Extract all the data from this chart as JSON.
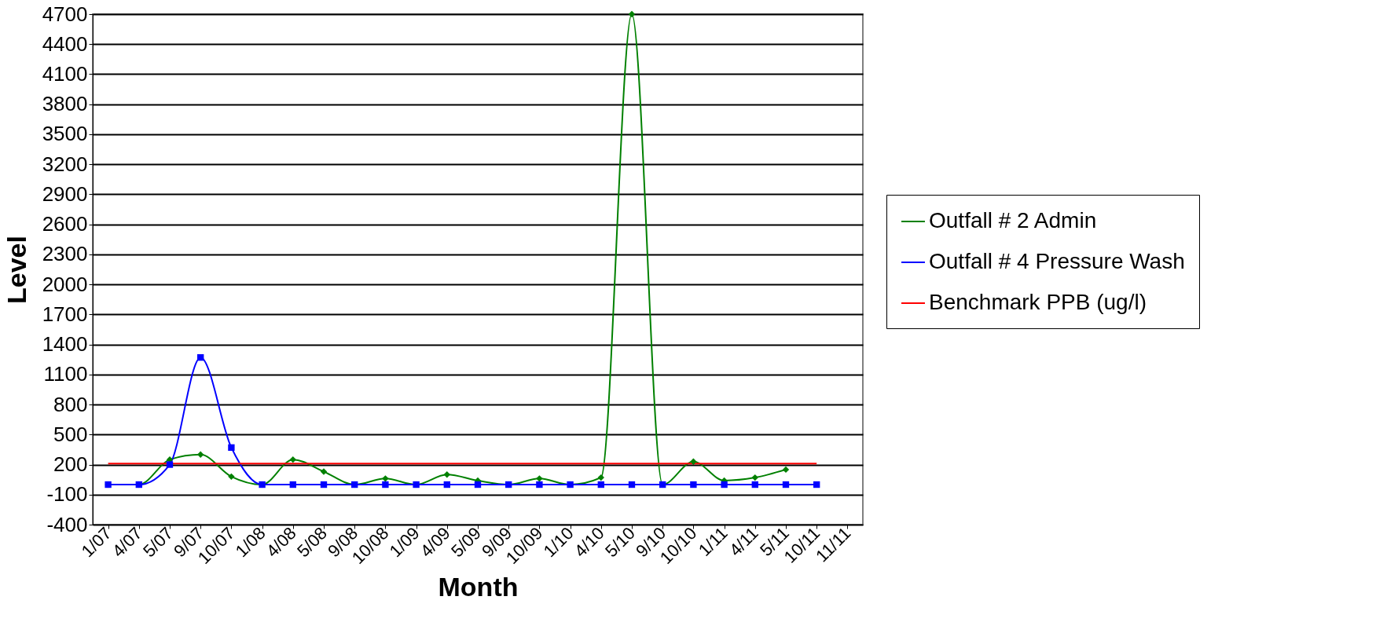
{
  "chart_data": {
    "type": "line",
    "xlabel": "Month",
    "ylabel": "Level",
    "categories": [
      "1/07",
      "4/07",
      "5/07",
      "9/07",
      "10/07",
      "1/08",
      "4/08",
      "5/08",
      "9/08",
      "10/08",
      "1/09",
      "4/09",
      "5/09",
      "9/09",
      "10/09",
      "1/10",
      "4/10",
      "5/10",
      "9/10",
      "10/10",
      "1/11",
      "4/11",
      "5/11",
      "10/11",
      "11/11"
    ],
    "series": [
      {
        "name": "Outfall # 2 Admin",
        "color": "#008000",
        "marker": "diamond",
        "values": [
          0,
          0,
          250,
          300,
          80,
          0,
          250,
          130,
          0,
          60,
          0,
          100,
          40,
          0,
          60,
          0,
          70,
          4700,
          0,
          230,
          40,
          70,
          150,
          null,
          null
        ]
      },
      {
        "name": "Outfall # 4 Pressure Wash",
        "color": "#0000ff",
        "marker": "square",
        "values": [
          0,
          0,
          200,
          1270,
          370,
          0,
          0,
          0,
          0,
          0,
          0,
          0,
          0,
          0,
          0,
          0,
          0,
          0,
          0,
          0,
          0,
          0,
          0,
          0,
          null
        ]
      },
      {
        "name": "Benchmark  PPB (ug/l)",
        "color": "#ff0000",
        "marker": "none",
        "values": [
          210,
          210,
          210,
          210,
          210,
          210,
          210,
          210,
          210,
          210,
          210,
          210,
          210,
          210,
          210,
          210,
          210,
          210,
          210,
          210,
          210,
          210,
          210,
          210,
          null
        ]
      }
    ],
    "ylim": [
      -400,
      4700
    ],
    "yticks": [
      -400,
      -100,
      200,
      500,
      800,
      1100,
      1400,
      1700,
      2000,
      2300,
      2600,
      2900,
      3200,
      3500,
      3800,
      4100,
      4400,
      4700
    ],
    "grid": "y",
    "legend": "right"
  }
}
